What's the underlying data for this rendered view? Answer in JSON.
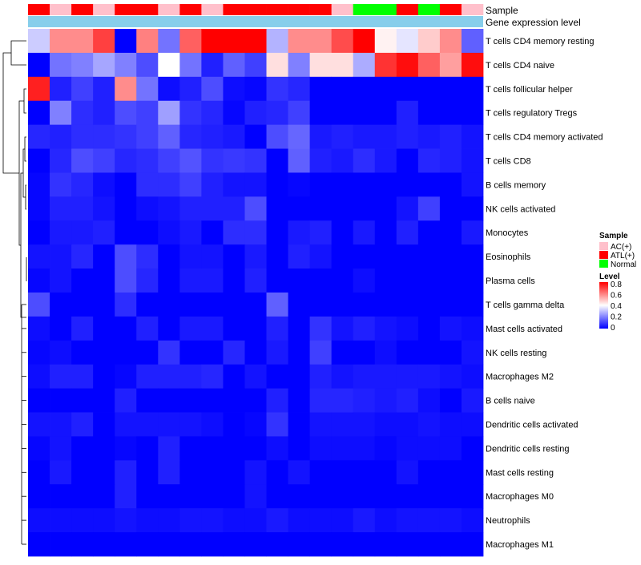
{
  "chart_data": {
    "type": "heatmap",
    "annotation_tracks": [
      {
        "label": "Sample",
        "values": [
          "ATL(+)",
          "AC(+)",
          "ATL(+)",
          "AC(+)",
          "ATL(+)",
          "ATL(+)",
          "AC(+)",
          "ATL(+)",
          "AC(+)",
          "ATL(+)",
          "ATL(+)",
          "ATL(+)",
          "ATL(+)",
          "ATL(+)",
          "AC(+)",
          "Normal",
          "Normal",
          "ATL(+)",
          "Normal",
          "ATL(+)",
          "AC(+)"
        ]
      },
      {
        "label": "Gene expression level"
      }
    ],
    "rows": [
      "T cells CD4 memory resting",
      "T cells CD4 naive",
      "T cells follicular helper",
      "T cells regulatory  Tregs",
      "T cells CD4 memory activated",
      "T cells CD8",
      "B cells memory",
      "NK cells activated",
      "Monocytes",
      "Eosinophils",
      "Plasma cells",
      "T cells gamma delta",
      "Mast cells activated",
      "NK cells resting",
      "Macrophages M2",
      "B cells naive",
      "Dendritic cells activated",
      "Dendritic cells resting",
      "Mast cells resting",
      "Macrophages M0",
      "Neutrophils",
      "Macrophages M1"
    ],
    "values": [
      [
        0.32,
        0.58,
        0.58,
        0.7,
        0.0,
        0.6,
        0.18,
        0.65,
        0.8,
        0.8,
        0.8,
        0.28,
        0.58,
        0.58,
        0.68,
        0.8,
        0.42,
        0.36,
        0.48,
        0.58,
        0.15
      ],
      [
        0.0,
        0.18,
        0.2,
        0.26,
        0.2,
        0.12,
        0.4,
        0.18,
        0.05,
        0.15,
        0.1,
        0.45,
        0.2,
        0.45,
        0.45,
        0.27,
        0.72,
        0.78,
        0.65,
        0.55,
        0.78
      ],
      [
        0.75,
        0.05,
        0.1,
        0.05,
        0.58,
        0.18,
        0.02,
        0.05,
        0.12,
        0.02,
        0.01,
        0.08,
        0.06,
        0.0,
        0.0,
        0.0,
        0.0,
        0.0,
        0.0,
        0.0,
        0.0
      ],
      [
        0.0,
        0.2,
        0.07,
        0.05,
        0.12,
        0.1,
        0.25,
        0.08,
        0.06,
        0.01,
        0.05,
        0.06,
        0.1,
        0.0,
        0.0,
        0.0,
        0.0,
        0.05,
        0.0,
        0.0,
        0.0
      ],
      [
        0.06,
        0.05,
        0.07,
        0.07,
        0.08,
        0.1,
        0.15,
        0.06,
        0.05,
        0.04,
        0.0,
        0.12,
        0.16,
        0.04,
        0.05,
        0.04,
        0.04,
        0.05,
        0.04,
        0.05,
        0.03
      ],
      [
        0.0,
        0.06,
        0.12,
        0.1,
        0.06,
        0.07,
        0.1,
        0.13,
        0.08,
        0.09,
        0.08,
        0.0,
        0.15,
        0.05,
        0.04,
        0.07,
        0.04,
        0.0,
        0.06,
        0.05,
        0.03
      ],
      [
        0.01,
        0.08,
        0.06,
        0.02,
        0.0,
        0.07,
        0.07,
        0.1,
        0.05,
        0.03,
        0.03,
        0.0,
        0.01,
        0.0,
        0.0,
        0.0,
        0.0,
        0.0,
        0.0,
        0.0,
        0.03
      ],
      [
        0.01,
        0.05,
        0.05,
        0.03,
        0.0,
        0.02,
        0.03,
        0.05,
        0.05,
        0.05,
        0.12,
        0.0,
        0.0,
        0.0,
        0.0,
        0.0,
        0.0,
        0.03,
        0.1,
        0.0,
        0.0
      ],
      [
        0.0,
        0.04,
        0.04,
        0.05,
        0.0,
        0.0,
        0.02,
        0.04,
        0.0,
        0.07,
        0.07,
        0.0,
        0.04,
        0.05,
        0.0,
        0.04,
        0.0,
        0.05,
        0.0,
        0.0,
        0.04
      ],
      [
        0.03,
        0.03,
        0.06,
        0.0,
        0.12,
        0.07,
        0.0,
        0.03,
        0.03,
        0.0,
        0.04,
        0.0,
        0.05,
        0.03,
        0.0,
        0.0,
        0.0,
        0.0,
        0.0,
        0.0,
        0.0
      ],
      [
        0.01,
        0.03,
        0.0,
        0.0,
        0.12,
        0.06,
        0.0,
        0.04,
        0.04,
        0.0,
        0.05,
        0.0,
        0.0,
        0.0,
        0.0,
        0.02,
        0.0,
        0.0,
        0.0,
        0.0,
        0.0
      ],
      [
        0.12,
        0.0,
        0.0,
        0.0,
        0.07,
        0.0,
        0.0,
        0.0,
        0.0,
        0.0,
        0.0,
        0.15,
        0.0,
        0.0,
        0.0,
        0.0,
        0.0,
        0.0,
        0.0,
        0.0,
        0.0
      ],
      [
        0.02,
        0.0,
        0.05,
        0.0,
        0.0,
        0.05,
        0.0,
        0.04,
        0.04,
        0.0,
        0.0,
        0.05,
        0.0,
        0.08,
        0.03,
        0.05,
        0.03,
        0.02,
        0.0,
        0.03,
        0.02
      ],
      [
        0.01,
        0.02,
        0.0,
        0.0,
        0.0,
        0.0,
        0.08,
        0.0,
        0.0,
        0.06,
        0.0,
        0.04,
        0.0,
        0.1,
        0.0,
        0.0,
        0.02,
        0.0,
        0.0,
        0.0,
        0.03
      ],
      [
        0.02,
        0.05,
        0.05,
        0.0,
        0.01,
        0.05,
        0.05,
        0.05,
        0.06,
        0.0,
        0.03,
        0.0,
        0.0,
        0.05,
        0.03,
        0.04,
        0.04,
        0.04,
        0.04,
        0.03,
        0.02
      ],
      [
        0.0,
        0.0,
        0.0,
        0.0,
        0.05,
        0.0,
        0.0,
        0.0,
        0.0,
        0.0,
        0.0,
        0.05,
        0.0,
        0.06,
        0.06,
        0.05,
        0.04,
        0.05,
        0.02,
        0.0,
        0.04
      ],
      [
        0.03,
        0.03,
        0.05,
        0.0,
        0.03,
        0.03,
        0.03,
        0.03,
        0.02,
        0.0,
        0.01,
        0.08,
        0.0,
        0.03,
        0.03,
        0.03,
        0.02,
        0.02,
        0.03,
        0.02,
        0.02
      ],
      [
        0.01,
        0.03,
        0.0,
        0.0,
        0.01,
        0.0,
        0.05,
        0.0,
        0.0,
        0.0,
        0.0,
        0.02,
        0.0,
        0.02,
        0.02,
        0.02,
        0.01,
        0.02,
        0.02,
        0.02,
        0.0
      ],
      [
        0.0,
        0.04,
        0.0,
        0.0,
        0.05,
        0.0,
        0.05,
        0.0,
        0.0,
        0.0,
        0.03,
        0.0,
        0.03,
        0.0,
        0.0,
        0.0,
        0.0,
        0.03,
        0.0,
        0.0,
        0.0
      ],
      [
        0.0,
        0.0,
        0.0,
        0.0,
        0.05,
        0.0,
        0.0,
        0.0,
        0.0,
        0.0,
        0.03,
        0.0,
        0.0,
        0.0,
        0.0,
        0.0,
        0.0,
        0.0,
        0.0,
        0.0,
        0.0
      ],
      [
        0.02,
        0.02,
        0.02,
        0.02,
        0.03,
        0.02,
        0.02,
        0.03,
        0.03,
        0.02,
        0.02,
        0.04,
        0.02,
        0.02,
        0.02,
        0.04,
        0.02,
        0.03,
        0.03,
        0.03,
        0.02
      ],
      [
        0.0,
        0.0,
        0.0,
        0.0,
        0.0,
        0.0,
        0.0,
        0.0,
        0.0,
        0.0,
        0.0,
        0.0,
        0.0,
        0.0,
        0.0,
        0.0,
        0.0,
        0.0,
        0.0,
        0.0,
        0.0
      ]
    ],
    "color_scale": {
      "low": "#0000ff",
      "mid": "#ffffff",
      "high": "#ff0000",
      "mid_value": 0.4,
      "range": [
        0,
        0.8
      ]
    },
    "legends": [
      {
        "title": "Sample",
        "entries": [
          {
            "label": "AC(+)",
            "color": "#ffc0cb"
          },
          {
            "label": "ATL(+)",
            "color": "#ff0000"
          },
          {
            "label": "Normal",
            "color": "#00ff00"
          }
        ]
      },
      {
        "title": "Level",
        "ticks": [
          "0.8",
          "0.6",
          "0.4",
          "0.2",
          "0"
        ]
      }
    ],
    "track_colors": {
      "gene_expression_level": "#87ceeb"
    },
    "dendrogram": {
      "side": "left"
    }
  }
}
